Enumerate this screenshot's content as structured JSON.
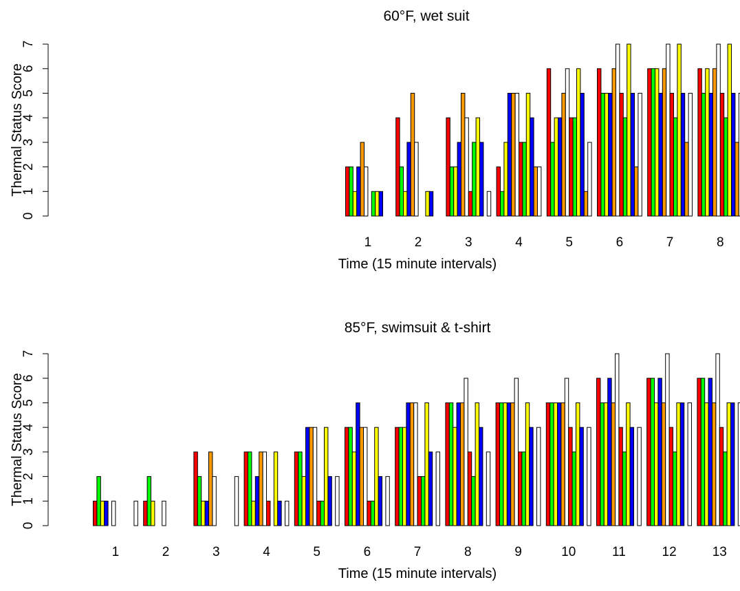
{
  "colors": [
    "#ff0000",
    "#00ff00",
    "#ffff00",
    "#0000ff",
    "#ff9900",
    "#ffffff"
  ],
  "chart_data": [
    {
      "type": "bar",
      "title": "60°F, wet suit",
      "xlabel": "Time (15 minute intervals)",
      "ylabel": "Thermal Status Score",
      "ylim": [
        0,
        7
      ],
      "yticks": [
        "0",
        "1",
        "2",
        "3",
        "4",
        "5",
        "6",
        "7"
      ],
      "categories": [
        "1",
        "2",
        "3",
        "4",
        "5",
        "6",
        "7",
        "8"
      ],
      "bars_per_group": 12,
      "groups": [
        [
          2,
          2,
          1,
          2,
          3,
          2,
          0,
          1,
          1,
          1,
          0,
          0
        ],
        [
          4,
          2,
          1,
          3,
          5,
          3,
          0,
          0,
          1,
          1,
          0,
          0
        ],
        [
          4,
          2,
          2,
          3,
          5,
          4,
          1,
          3,
          4,
          3,
          0,
          1
        ],
        [
          2,
          1,
          3,
          5,
          5,
          5,
          3,
          3,
          5,
          4,
          2,
          2
        ],
        [
          6,
          3,
          4,
          4,
          5,
          6,
          4,
          4,
          6,
          5,
          1,
          3
        ],
        [
          6,
          5,
          5,
          5,
          6,
          7,
          5,
          4,
          7,
          5,
          2,
          5
        ],
        [
          6,
          6,
          6,
          5,
          6,
          7,
          5,
          4,
          7,
          5,
          3,
          5
        ],
        [
          6,
          5,
          6,
          5,
          6,
          7,
          5,
          4,
          7,
          5,
          3,
          5
        ]
      ]
    },
    {
      "type": "bar",
      "title": "85°F, swimsuit & t-shirt",
      "xlabel": "Time (15 minute intervals)",
      "ylabel": "Thermal Status Score",
      "ylim": [
        0,
        7
      ],
      "yticks": [
        "0",
        "1",
        "2",
        "3",
        "4",
        "5",
        "6",
        "7"
      ],
      "categories": [
        "1",
        "2",
        "3",
        "4",
        "5",
        "6",
        "7",
        "8",
        "9",
        "10",
        "11",
        "12",
        "13"
      ],
      "bars_per_group": 12,
      "groups": [
        [
          1,
          2,
          1,
          1,
          0,
          1,
          0,
          0,
          0,
          0,
          0,
          1
        ],
        [
          1,
          2,
          1,
          0,
          0,
          1,
          0,
          0,
          0,
          0,
          0,
          0
        ],
        [
          3,
          2,
          1,
          1,
          3,
          2,
          0,
          0,
          0,
          0,
          0,
          2
        ],
        [
          3,
          3,
          1,
          2,
          3,
          3,
          1,
          0,
          3,
          1,
          0,
          1
        ],
        [
          3,
          3,
          2,
          4,
          4,
          4,
          1,
          1,
          4,
          2,
          0,
          2
        ],
        [
          4,
          4,
          3,
          5,
          4,
          4,
          1,
          1,
          4,
          2,
          0,
          2
        ],
        [
          4,
          4,
          4,
          5,
          5,
          5,
          2,
          2,
          5,
          3,
          0,
          3
        ],
        [
          5,
          5,
          4,
          5,
          5,
          6,
          3,
          2,
          5,
          4,
          0,
          3
        ],
        [
          5,
          5,
          5,
          5,
          5,
          6,
          3,
          3,
          5,
          4,
          0,
          4
        ],
        [
          5,
          5,
          5,
          5,
          5,
          6,
          4,
          3,
          5,
          4,
          0,
          4
        ],
        [
          6,
          5,
          5,
          6,
          5,
          7,
          4,
          3,
          5,
          4,
          0,
          4
        ],
        [
          6,
          6,
          5,
          6,
          5,
          7,
          4,
          3,
          5,
          5,
          0,
          5
        ],
        [
          6,
          6,
          5,
          6,
          5,
          7,
          4,
          3,
          5,
          5,
          0,
          5
        ]
      ]
    }
  ]
}
